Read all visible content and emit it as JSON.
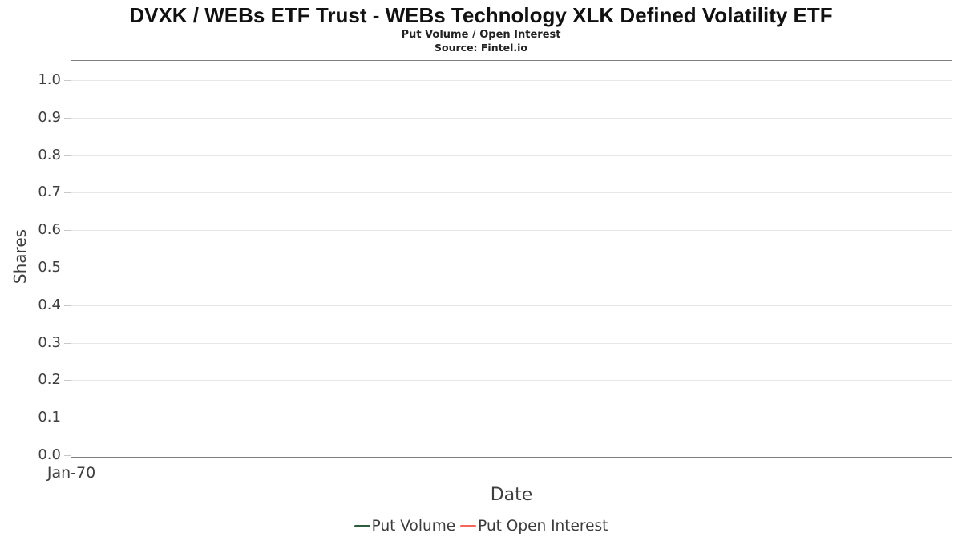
{
  "chart_data": {
    "type": "line",
    "title": "DVXK / WEBs ETF Trust - WEBs Technology XLK Defined Volatility ETF",
    "subtitle": "Put Volume / Open Interest",
    "source": "Source: Fintel.io",
    "xlabel": "Date",
    "ylabel": "Shares",
    "ylim": [
      0.0,
      1.0
    ],
    "yticks": [
      0.0,
      0.1,
      0.2,
      0.3,
      0.4,
      0.5,
      0.6,
      0.7,
      0.8,
      0.9,
      1.0
    ],
    "ytick_labels": [
      "0.0",
      "0.1",
      "0.2",
      "0.3",
      "0.4",
      "0.5",
      "0.6",
      "0.7",
      "0.8",
      "0.9",
      "1.0"
    ],
    "xtick_labels": [
      "Jan-70"
    ],
    "grid": true,
    "legend_position": "bottom",
    "series": [
      {
        "name": "Put Volume",
        "color": "#2e5e3f",
        "values": []
      },
      {
        "name": "Put Open Interest",
        "color": "#f4655c",
        "values": []
      }
    ]
  },
  "colors": {
    "plot_border": "#7f7f7f",
    "gridline": "#e7e7e7",
    "tick": "#c8c8c8",
    "axis_text": "#3f3f3f",
    "title_text": "#111111",
    "background": "#ffffff"
  }
}
